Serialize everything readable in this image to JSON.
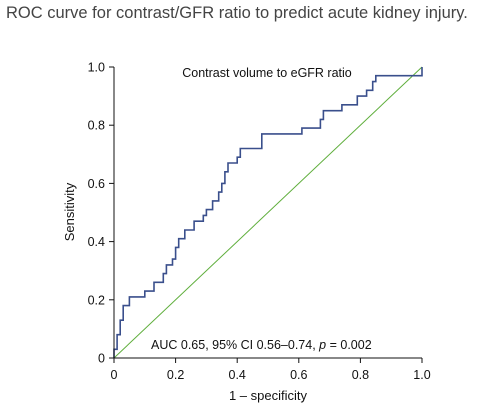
{
  "page": {
    "title": "ROC curve for contrast/GFR ratio to predict acute kidney injury."
  },
  "colors": {
    "roc_curve": "#3a4f8c",
    "reference_line": "#5fae3c",
    "axis": "#111111",
    "text": "#111111"
  },
  "chart_data": {
    "type": "line",
    "title": "Contrast volume to eGFR ratio",
    "xlabel": "1 – specificity",
    "ylabel": "Sensitivity",
    "xlim": [
      0,
      1
    ],
    "ylim": [
      0,
      1
    ],
    "x_ticks": [
      0,
      0.2,
      0.4,
      0.6,
      0.8,
      1.0
    ],
    "x_tick_labels": [
      "0",
      "0.2",
      "0.4",
      "0.6",
      "0.8",
      "1.0"
    ],
    "y_ticks": [
      0,
      0.2,
      0.4,
      0.6,
      0.8,
      1.0
    ],
    "y_tick_labels": [
      "0",
      "0.2",
      "0.4",
      "0.6",
      "0.8",
      "1.0"
    ],
    "grid": false,
    "legend": "none",
    "annotation": {
      "prefix": "AUC 0.65, 95% CI 0.56–0.74, ",
      "italic": "p",
      "suffix": " = 0.002"
    },
    "series": [
      {
        "kind": "roc_step",
        "x": [
          0,
          0,
          0.01,
          0.01,
          0.02,
          0.02,
          0.03,
          0.03,
          0.05,
          0.05,
          0.06,
          0.06,
          0.1,
          0.1,
          0.13,
          0.13,
          0.16,
          0.16,
          0.17,
          0.17,
          0.19,
          0.19,
          0.2,
          0.2,
          0.21,
          0.21,
          0.23,
          0.23,
          0.26,
          0.26,
          0.29,
          0.29,
          0.3,
          0.3,
          0.32,
          0.32,
          0.34,
          0.34,
          0.35,
          0.35,
          0.36,
          0.36,
          0.36,
          0.36,
          0.37,
          0.37,
          0.4,
          0.4,
          0.41,
          0.41,
          0.48,
          0.48,
          0.61,
          0.61,
          0.67,
          0.67,
          0.68,
          0.68,
          0.74,
          0.74,
          0.79,
          0.79,
          0.82,
          0.82,
          0.84,
          0.84,
          0.85,
          0.85,
          0.93,
          0.93,
          1.0,
          1.0
        ],
        "y": [
          0,
          0.03,
          0.03,
          0.08,
          0.08,
          0.13,
          0.13,
          0.18,
          0.18,
          0.21,
          0.21,
          0.21,
          0.21,
          0.23,
          0.23,
          0.26,
          0.26,
          0.29,
          0.29,
          0.32,
          0.32,
          0.34,
          0.34,
          0.38,
          0.38,
          0.41,
          0.41,
          0.44,
          0.44,
          0.47,
          0.47,
          0.49,
          0.49,
          0.51,
          0.51,
          0.54,
          0.54,
          0.57,
          0.57,
          0.6,
          0.6,
          0.64,
          0.64,
          0.64,
          0.64,
          0.67,
          0.67,
          0.69,
          0.69,
          0.72,
          0.72,
          0.77,
          0.77,
          0.79,
          0.79,
          0.82,
          0.82,
          0.85,
          0.85,
          0.87,
          0.87,
          0.9,
          0.9,
          0.92,
          0.92,
          0.95,
          0.95,
          0.97,
          0.97,
          0.97,
          0.97,
          1.0
        ]
      },
      {
        "kind": "reference",
        "x": [
          0,
          1
        ],
        "y": [
          0,
          1
        ]
      }
    ]
  }
}
